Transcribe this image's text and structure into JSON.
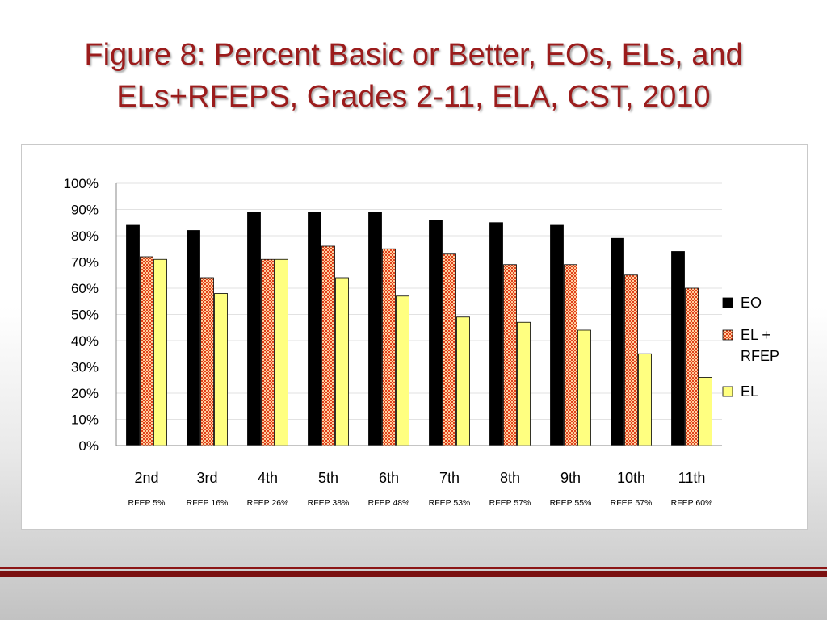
{
  "slide": {
    "title_line1": "Figure 8: Percent Basic or Better, EOs, ELs, and",
    "title_line2": "ELs+RFEPS, Grades 2-11, ELA, CST, 2010"
  },
  "colors": {
    "title": "#9b1c1c",
    "EO": "#000000",
    "EL_RFEP": "#e0401a",
    "EL_RFEP_pattern": "#ffd0a0",
    "EL": "#ffff80",
    "rule": "#8b1515"
  },
  "chart_data": {
    "type": "bar",
    "title": "",
    "xlabel": "",
    "ylabel": "",
    "ylim": [
      0,
      100
    ],
    "yticks": [
      "0%",
      "10%",
      "20%",
      "30%",
      "40%",
      "50%",
      "60%",
      "70%",
      "80%",
      "90%",
      "100%"
    ],
    "grid": true,
    "legend_position": "right",
    "categories": [
      "2nd",
      "3rd",
      "4th",
      "5th",
      "6th",
      "7th",
      "8th",
      "9th",
      "10th",
      "11th"
    ],
    "sublabels": [
      "RFEP 5%",
      "RFEP 16%",
      "RFEP 26%",
      "RFEP 38%",
      "RFEP 48%",
      "RFEP 53%",
      "RFEP 57%",
      "RFEP 55%",
      "RFEP 57%",
      "RFEP 60%"
    ],
    "series": [
      {
        "name": "EO",
        "values": [
          84,
          82,
          89,
          89,
          89,
          86,
          85,
          84,
          79,
          74
        ]
      },
      {
        "name": "EL + RFEP",
        "values": [
          72,
          64,
          71,
          76,
          75,
          73,
          69,
          69,
          65,
          60
        ]
      },
      {
        "name": "EL",
        "values": [
          71,
          58,
          71,
          64,
          57,
          49,
          47,
          44,
          35,
          26
        ]
      }
    ],
    "legend": [
      {
        "lines": [
          "EO"
        ]
      },
      {
        "lines": [
          "EL +",
          "RFEP"
        ]
      },
      {
        "lines": [
          "EL"
        ]
      }
    ]
  }
}
